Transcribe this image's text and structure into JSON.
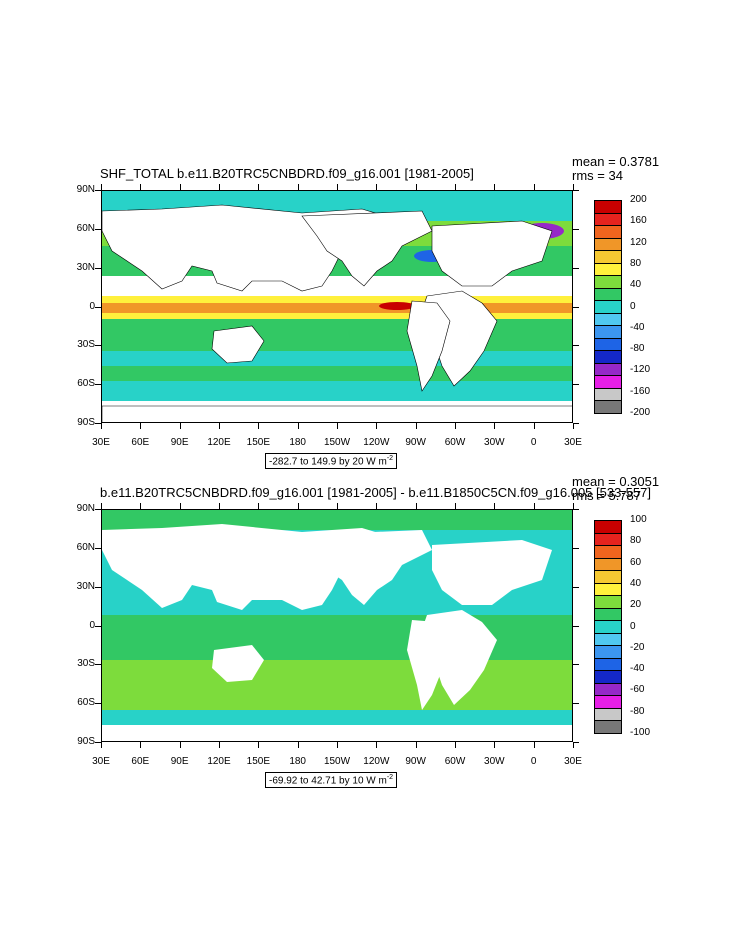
{
  "panels": [
    {
      "title": "SHF_TOTAL b.e11.B20TRC5CNBDRD.f09_g16.001 [1981-2005]",
      "mean": "mean = 0.3781",
      "rms": "rms = 34",
      "range": "-282.7 to 149.9 by 20  W m",
      "range_sup": "-2",
      "colorbar_labels": [
        "200",
        "160",
        "120",
        "80",
        "40",
        "0",
        "-40",
        "-80",
        "-120",
        "-160",
        "-200"
      ],
      "colorbar_colors": [
        "#c80000",
        "#e6231e",
        "#f0641e",
        "#f09628",
        "#f5c832",
        "#fff03c",
        "#7ddc3c",
        "#32c864",
        "#28d2c8",
        "#50c8f0",
        "#3c96f0",
        "#1e64e6",
        "#1428c8",
        "#9628c8",
        "#e61ee6",
        "#c8c8c8",
        "#787878"
      ]
    },
    {
      "title": "b.e11.B20TRC5CNBDRD.f09_g16.001 [1981-2005] - b.e11.B1850C5CN.f09_g16.005 [533-557]",
      "mean": "mean = 0.3051",
      "rms": "rms = 5.787",
      "range": "-69.92 to 42.71 by 10  W m",
      "range_sup": "-2",
      "colorbar_labels": [
        "100",
        "80",
        "60",
        "40",
        "20",
        "0",
        "-20",
        "-40",
        "-60",
        "-80",
        "-100"
      ],
      "colorbar_colors": [
        "#c80000",
        "#e6231e",
        "#f0641e",
        "#f09628",
        "#f5c832",
        "#fff03c",
        "#7ddc3c",
        "#32c864",
        "#28d2c8",
        "#50c8f0",
        "#3c96f0",
        "#1e64e6",
        "#1428c8",
        "#9628c8",
        "#e61ee6",
        "#c8c8c8",
        "#787878"
      ]
    }
  ],
  "axes": {
    "lat_labels": [
      "90N",
      "60N",
      "30N",
      "0",
      "30S",
      "60S",
      "90S"
    ],
    "lon_labels": [
      "30E",
      "60E",
      "90E",
      "120E",
      "150E",
      "180",
      "150W",
      "120W",
      "90W",
      "60W",
      "30W",
      "0",
      "30E"
    ]
  }
}
